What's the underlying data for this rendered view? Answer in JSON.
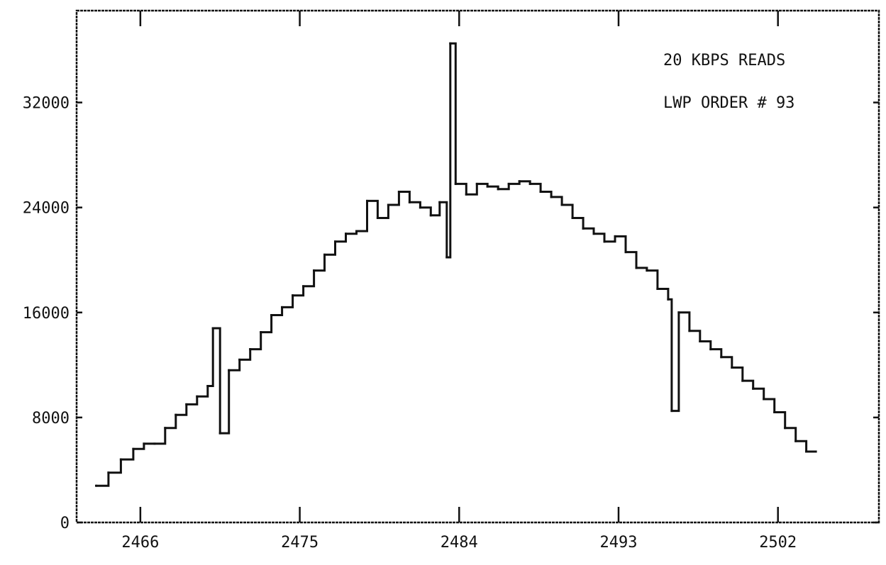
{
  "chart_data": {
    "type": "line",
    "annotations": [
      "20 KBPS READS",
      "LWP ORDER # 93"
    ],
    "xlabel": "",
    "ylabel": "",
    "x_ticks": [
      2466,
      2475,
      2484,
      2493,
      2502
    ],
    "x_tick_labels": [
      "2466",
      "2475",
      "2484",
      "2493",
      "2502"
    ],
    "y_ticks": [
      0,
      8000,
      16000,
      24000,
      32000
    ],
    "y_tick_labels": [
      "0",
      "8000",
      "16000",
      "24000",
      "32000"
    ],
    "xlim": [
      2462.4,
      2507.7
    ],
    "ylim": [
      0,
      39000
    ],
    "grid": false,
    "series": [
      {
        "style": "step",
        "x": [
          2463.5,
          2464.2,
          2464.9,
          2465.6,
          2466.2,
          2466.8,
          2467.4,
          2468.0,
          2468.6,
          2469.2,
          2469.8,
          2470.1,
          2470.5,
          2471.0,
          2471.6,
          2472.2,
          2472.8,
          2473.4,
          2474.0,
          2474.6,
          2475.2,
          2475.8,
          2476.4,
          2477.0,
          2477.6,
          2478.2,
          2478.8,
          2479.4,
          2480.0,
          2480.6,
          2481.2,
          2481.8,
          2482.4,
          2482.9,
          2483.3,
          2483.5,
          2483.8,
          2484.4,
          2485.0,
          2485.6,
          2486.2,
          2486.8,
          2487.4,
          2488.0,
          2488.6,
          2489.2,
          2489.8,
          2490.4,
          2491.0,
          2491.6,
          2492.2,
          2492.8,
          2493.4,
          2494.0,
          2494.6,
          2495.2,
          2495.8,
          2496.0,
          2496.4,
          2497.0,
          2497.6,
          2498.2,
          2498.8,
          2499.4,
          2500.0,
          2500.6,
          2501.2,
          2501.8,
          2502.4,
          2503.0,
          2503.6
        ],
        "y": [
          2800,
          3800,
          4800,
          5600,
          6000,
          6000,
          7200,
          8200,
          9000,
          9600,
          10400,
          14800,
          6800,
          11600,
          12400,
          13200,
          14500,
          15800,
          16400,
          17300,
          18000,
          19200,
          20400,
          21400,
          22000,
          22200,
          24500,
          23200,
          24200,
          25200,
          24400,
          24000,
          23400,
          24400,
          20200,
          36500,
          25800,
          25000,
          25800,
          25600,
          25400,
          25800,
          26000,
          25800,
          25200,
          24800,
          24200,
          23200,
          22400,
          22000,
          21400,
          21800,
          20600,
          19400,
          19200,
          17800,
          17000,
          8500,
          16000,
          14600,
          13800,
          13200,
          12600,
          11800,
          10800,
          10200,
          9400,
          8400,
          7200,
          6200,
          5400
        ]
      }
    ]
  }
}
